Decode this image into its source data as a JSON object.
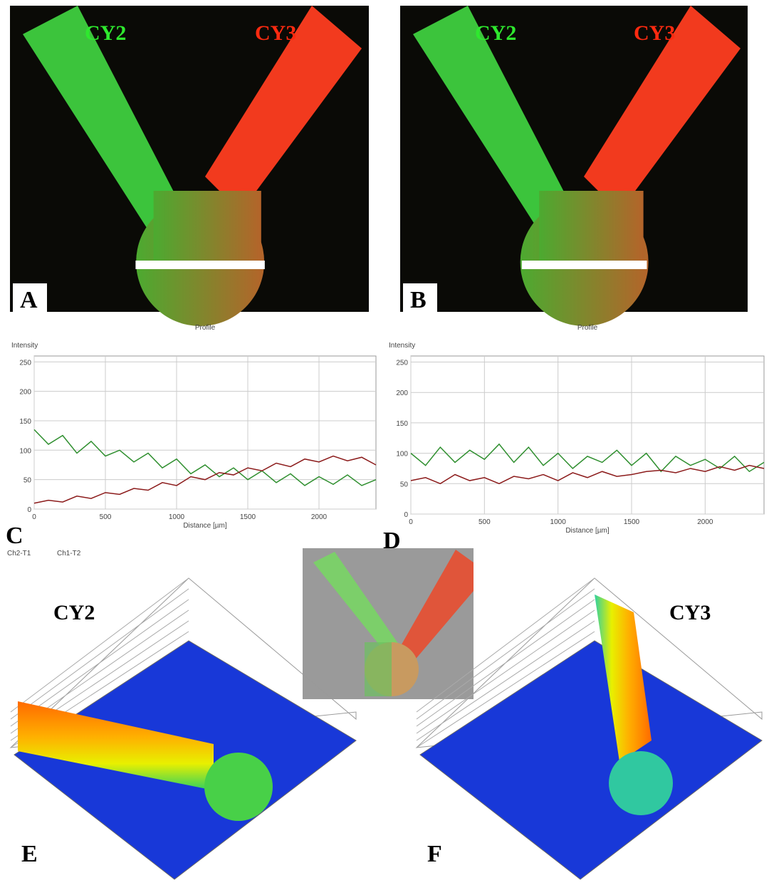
{
  "panels": [
    {
      "letter": "A",
      "left_label": "CY2",
      "right_label": "CY3"
    },
    {
      "letter": "B",
      "left_label": "CY2",
      "right_label": "CY3"
    }
  ],
  "chart_data": [
    {
      "type": "line",
      "letter": "C",
      "title": "Profile",
      "y_label": "Intensity",
      "x_label": "Distance [µm]",
      "x": [
        0,
        100,
        200,
        300,
        400,
        500,
        600,
        700,
        800,
        900,
        1000,
        1100,
        1200,
        1300,
        1400,
        1500,
        1600,
        1700,
        1800,
        1900,
        2000,
        2100,
        2200,
        2300,
        2400
      ],
      "series": [
        {
          "name": "Ch2-T1",
          "color": "#2f8f2f",
          "values": [
            135,
            110,
            125,
            95,
            115,
            90,
            100,
            80,
            95,
            70,
            85,
            60,
            75,
            55,
            70,
            50,
            65,
            45,
            60,
            40,
            55,
            42,
            58,
            40,
            50
          ]
        },
        {
          "name": "Ch1-T2",
          "color": "#8b1a1a",
          "values": [
            10,
            15,
            12,
            22,
            18,
            28,
            25,
            35,
            32,
            45,
            40,
            55,
            50,
            62,
            58,
            70,
            65,
            78,
            72,
            85,
            80,
            90,
            82,
            88,
            75
          ]
        }
      ],
      "xlim": [
        0,
        2400
      ],
      "ylim": [
        0,
        260
      ],
      "xticks": [
        0,
        500,
        1000,
        1500,
        2000
      ],
      "yticks": [
        0,
        50,
        100,
        150,
        200,
        250
      ],
      "grid": true,
      "legend": "bottom-left"
    },
    {
      "type": "line",
      "letter": "D",
      "title": "Profile",
      "y_label": "Intensity",
      "x_label": "Distance [µm]",
      "x": [
        0,
        100,
        200,
        300,
        400,
        500,
        600,
        700,
        800,
        900,
        1000,
        1100,
        1200,
        1300,
        1400,
        1500,
        1600,
        1700,
        1800,
        1900,
        2000,
        2100,
        2200,
        2300,
        2400
      ],
      "series": [
        {
          "color": "#2f8f2f",
          "values": [
            100,
            80,
            110,
            85,
            105,
            90,
            115,
            85,
            110,
            80,
            100,
            75,
            95,
            85,
            105,
            80,
            100,
            70,
            95,
            80,
            90,
            75,
            95,
            70,
            85
          ]
        },
        {
          "color": "#8b1a1a",
          "values": [
            55,
            60,
            50,
            65,
            55,
            60,
            50,
            62,
            58,
            65,
            55,
            68,
            60,
            70,
            62,
            65,
            70,
            72,
            68,
            75,
            70,
            78,
            72,
            80,
            75
          ]
        }
      ],
      "xlim": [
        0,
        2400
      ],
      "ylim": [
        0,
        260
      ],
      "xticks": [
        0,
        500,
        1000,
        1500,
        2000
      ],
      "yticks": [
        0,
        50,
        100,
        150,
        200,
        250
      ],
      "grid": true
    }
  ],
  "surfaces": [
    {
      "letter": "E",
      "label": "CY2"
    },
    {
      "letter": "F",
      "label": "CY3"
    }
  ]
}
